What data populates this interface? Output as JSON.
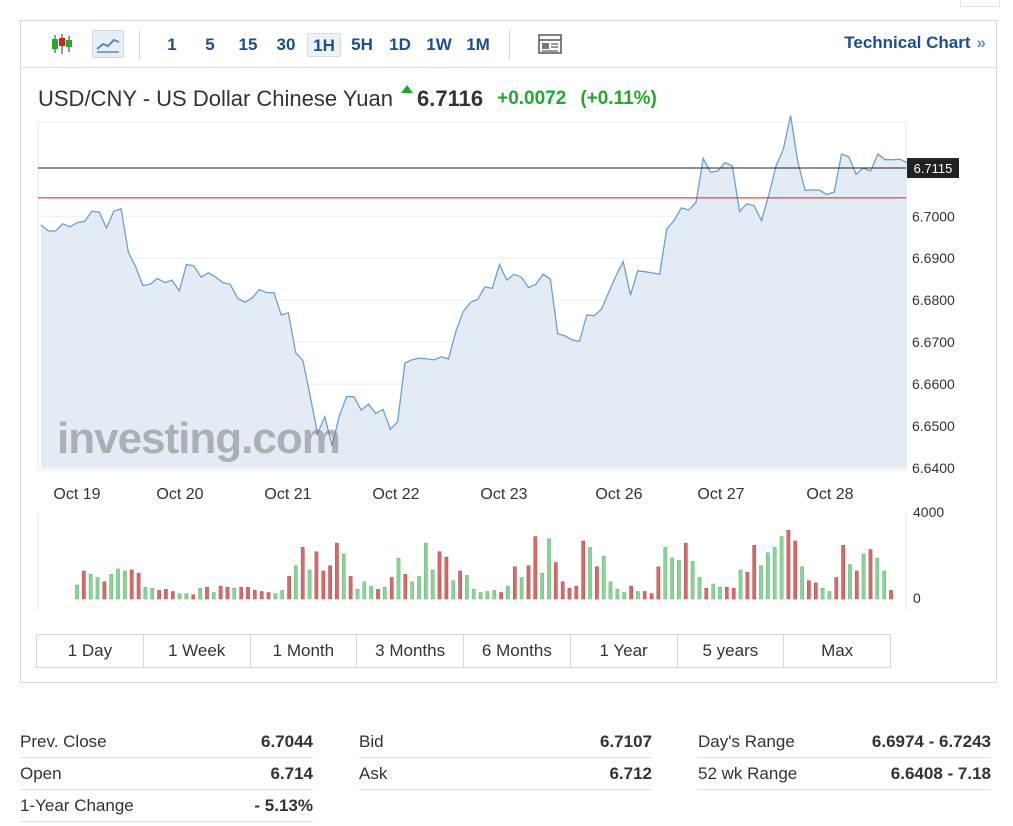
{
  "toolbar": {
    "intervals": [
      "1",
      "5",
      "15",
      "30",
      "1H",
      "5H",
      "1D",
      "1W",
      "1M"
    ],
    "selected_interval": "1H",
    "technical_chart_label": "Technical Chart",
    "technical_chart_arrow": "»",
    "icons": [
      "candlestick-icon",
      "area-chart-icon",
      "news-grid-icon"
    ]
  },
  "quote": {
    "pair_title": "USD/CNY - US Dollar Chinese Yuan",
    "price": "6.7116",
    "change": "+0.0072",
    "change_pct": "(+0.11%)",
    "direction": "up"
  },
  "chart_data": {
    "type": "area",
    "x_labels": [
      "Oct 19",
      "Oct 20",
      "Oct 21",
      "Oct 22",
      "Oct 23",
      "Oct 26",
      "Oct 27",
      "Oct 28"
    ],
    "y_ticks": [
      "6.7000",
      "6.6900",
      "6.6800",
      "6.6700",
      "6.6600",
      "6.6500",
      "6.6400"
    ],
    "ylim": [
      6.64,
      6.722
    ],
    "current_price_label": "6.7115",
    "current_price": 6.7115,
    "prev_close": 6.7044,
    "price_series": [
      6.698,
      6.6965,
      6.6965,
      6.6982,
      6.6975,
      6.6985,
      6.6988,
      6.7012,
      6.701,
      6.6972,
      6.7012,
      6.7018,
      6.6915,
      6.688,
      6.6835,
      6.6838,
      6.6852,
      6.6842,
      6.6848,
      6.6822,
      6.6885,
      6.6882,
      6.6855,
      6.6865,
      6.6855,
      6.6842,
      6.6838,
      6.6805,
      6.6795,
      6.6805,
      6.6825,
      6.6818,
      6.6818,
      6.6765,
      6.677,
      6.6675,
      6.6655,
      6.657,
      6.6482,
      6.6522,
      6.6453,
      6.6525,
      6.657,
      6.657,
      6.6538,
      6.6552,
      6.653,
      6.654,
      6.6492,
      6.651,
      6.665,
      6.6658,
      6.6662,
      6.666,
      6.6658,
      6.6665,
      6.666,
      6.6725,
      6.6772,
      6.6795,
      6.6802,
      6.6832,
      6.6828,
      6.6885,
      6.6848,
      6.6862,
      6.6855,
      6.683,
      6.6838,
      6.6862,
      6.685,
      6.672,
      6.6715,
      6.6705,
      6.6702,
      6.6765,
      6.6763,
      6.6778,
      6.6818,
      6.6858,
      6.6892,
      6.6812,
      6.687,
      6.6868,
      6.6865,
      6.6862,
      6.697,
      6.699,
      6.702,
      6.7015,
      6.7033,
      6.7138,
      6.7105,
      6.7108,
      6.7128,
      6.712,
      6.7012,
      6.703,
      6.7025,
      6.699,
      6.705,
      6.712,
      6.716,
      6.724,
      6.713,
      6.7062,
      6.7063,
      6.7062,
      6.7052,
      6.7058,
      6.7148,
      6.7142,
      6.71,
      6.7115,
      6.7108,
      6.7148,
      6.7135,
      6.7135,
      6.7136,
      6.7128
    ],
    "volume_ylim": [
      0,
      4000
    ],
    "volume_ticks": [
      "4000",
      "0"
    ],
    "volume_series": [
      650,
      1300,
      1150,
      1000,
      800,
      1150,
      1400,
      1300,
      1350,
      1200,
      550,
      500,
      400,
      450,
      350,
      250,
      250,
      200,
      500,
      550,
      300,
      600,
      550,
      500,
      550,
      550,
      400,
      350,
      300,
      250,
      400,
      1050,
      1550,
      2400,
      1350,
      2200,
      1300,
      1550,
      2600,
      2100,
      1050,
      450,
      800,
      600,
      450,
      550,
      1000,
      1900,
      1150,
      800,
      1050,
      2600,
      1350,
      2200,
      1950,
      850,
      1300,
      1100,
      450,
      300,
      350,
      400,
      300,
      600,
      1500,
      1000,
      1550,
      2900,
      1200,
      2800,
      1700,
      800,
      500,
      600,
      2700,
      2400,
      1500,
      2000,
      800,
      450,
      300,
      600,
      350,
      350,
      250,
      1500,
      2400,
      1900,
      1800,
      2600,
      1750,
      1000,
      500,
      700,
      550,
      550,
      500,
      1350,
      1250,
      2500,
      1550,
      2150,
      2400,
      2900,
      3200,
      2700,
      1500,
      850,
      750,
      500,
      350,
      1000,
      2500,
      1600,
      1300,
      2100,
      2300,
      1900,
      1300,
      400
    ],
    "watermark": "investing.com"
  },
  "ranges": [
    "1 Day",
    "1 Week",
    "1 Month",
    "3 Months",
    "6 Months",
    "1 Year",
    "5 years",
    "Max"
  ],
  "stats": {
    "col1": [
      {
        "label": "Prev. Close",
        "value": "6.7044"
      },
      {
        "label": "Open",
        "value": "6.714"
      },
      {
        "label": "1-Year Change",
        "value": "- 5.13%"
      }
    ],
    "col2": [
      {
        "label": "Bid",
        "value": "6.7107"
      },
      {
        "label": "Ask",
        "value": "6.712"
      }
    ],
    "col3": [
      {
        "label": "Day's Range",
        "value": "6.6974 - 6.7243"
      },
      {
        "label": "52 wk Range",
        "value": "6.6408 - 7.18"
      }
    ]
  },
  "colors": {
    "link": "#1b4f8f",
    "up": "#22a82b",
    "line": "#6aa0cf",
    "area": "#e3ecf5",
    "prev_close_line": "#d9231f",
    "vol_up": "#8fd19b",
    "vol_down": "#d46a6a"
  }
}
